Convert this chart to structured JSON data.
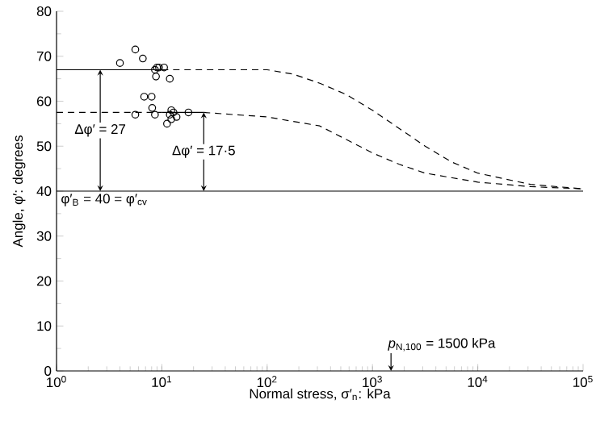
{
  "chart_data": {
    "type": "scatter",
    "xlabel": "Normal stress, σ′$_{n}$: kPa",
    "ylabel": "Angle, φ′: degrees",
    "log": "x",
    "grid": false,
    "xlim": [
      1,
      100000
    ],
    "ylim": [
      0,
      80
    ],
    "xticks": [
      {
        "value": 1,
        "label": "10$^{0}$"
      },
      {
        "value": 10,
        "label": "10$^{1}$"
      },
      {
        "value": 100,
        "label": "10$^{2}$"
      },
      {
        "value": 1000,
        "label": "10$^{3}$"
      },
      {
        "value": 10000,
        "label": "10$^{4}$"
      },
      {
        "value": 100000,
        "label": "10$^{5}$"
      }
    ],
    "yticks": [
      0,
      10,
      20,
      30,
      40,
      50,
      60,
      70,
      80
    ],
    "series": [
      {
        "marker": "circle",
        "color": "#000000",
        "x": [
          4,
          5.6,
          6.6,
          8.6,
          9,
          9.4,
          8.8,
          10.5,
          11.9,
          6.8,
          8,
          8.1,
          8.6,
          5.6,
          11.2,
          11.9,
          12.3,
          12.9,
          13.8,
          12.3,
          17.9
        ],
        "values": [
          68.5,
          71.5,
          69.5,
          67,
          67.5,
          67.5,
          65.5,
          67.5,
          65,
          61,
          61,
          58.5,
          57,
          57,
          55,
          57,
          58,
          57.5,
          56.5,
          56,
          57.5
        ]
      },
      {
        "type": "line",
        "line_style": "solid",
        "color": "#000000",
        "x": [
          1,
          10
        ],
        "values": [
          67,
          67
        ]
      },
      {
        "type": "line",
        "line_style": "dashed",
        "color": "#000000",
        "x": [
          10,
          31.6,
          100,
          178,
          316,
          562,
          1000,
          1778,
          3162,
          5623,
          10000,
          31623,
          100000
        ],
        "values": [
          67,
          67,
          67,
          66,
          64,
          61.5,
          58,
          54,
          50,
          46.5,
          44,
          41.5,
          40.5
        ]
      },
      {
        "type": "line",
        "line_style": "dashed",
        "color": "#000000",
        "x": [
          1,
          10
        ],
        "values": [
          57.5,
          57.5
        ]
      },
      {
        "type": "line",
        "line_style": "solid",
        "color": "#000000",
        "x": [
          10,
          25
        ],
        "values": [
          57.5,
          57.5
        ]
      },
      {
        "type": "line",
        "line_style": "dashed",
        "color": "#000000",
        "x": [
          25,
          100,
          316,
          1000,
          1778,
          3162,
          10000,
          31623,
          100000
        ],
        "values": [
          57.5,
          56.5,
          54.5,
          48.5,
          46,
          44,
          42,
          41,
          40.5
        ]
      }
    ],
    "ref_lines": [
      {
        "axis": "y",
        "value": 40,
        "label": "φ′$_{B}$ = 40 = φ′$_{cv}$",
        "color": "#000000",
        "line_style": "solid"
      }
    ],
    "annotations": [
      "Δφ′ = 27",
      "Δφ′ = 17·5",
      "*p*$_{N,100}$ = 1500 kPa"
    ]
  }
}
